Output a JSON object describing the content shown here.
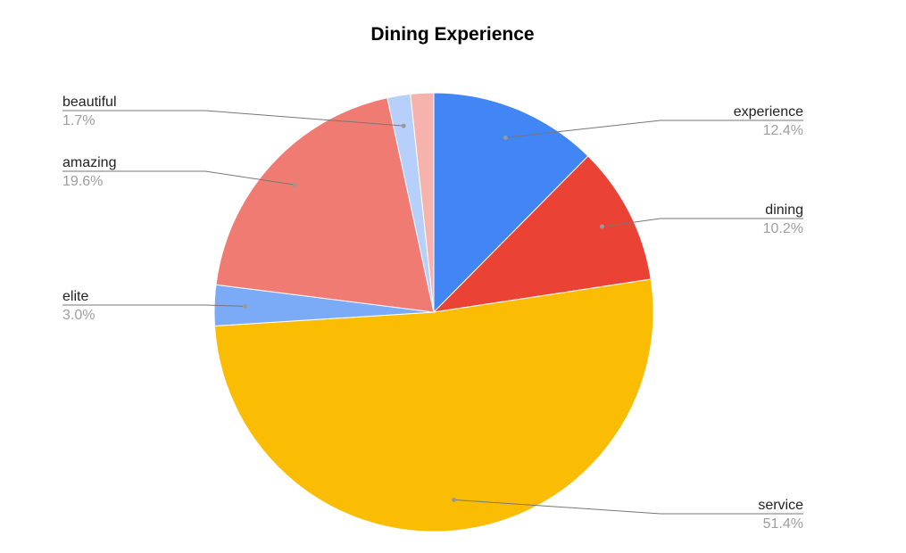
{
  "chart_data": {
    "type": "pie",
    "title": "Dining Experience",
    "slices": [
      {
        "label": "experience",
        "value": 12.4,
        "pct_label": "12.4%",
        "color": "#4285F4"
      },
      {
        "label": "dining",
        "value": 10.2,
        "pct_label": "10.2%",
        "color": "#EA4335"
      },
      {
        "label": "service",
        "value": 51.4,
        "pct_label": "51.4%",
        "color": "#FBBC04"
      },
      {
        "label": "elite",
        "value": 3.0,
        "pct_label": "3.0%",
        "color": "#7BAAF7"
      },
      {
        "label": "amazing",
        "value": 19.6,
        "pct_label": "19.6%",
        "color": "#F07B72"
      },
      {
        "label": "beautiful",
        "value": 1.7,
        "pct_label": "1.7%",
        "color": "#B7D0FB"
      },
      {
        "label": "",
        "value": 1.7,
        "pct_label": "",
        "color": "#F6B3AE"
      }
    ],
    "legend": "none"
  }
}
